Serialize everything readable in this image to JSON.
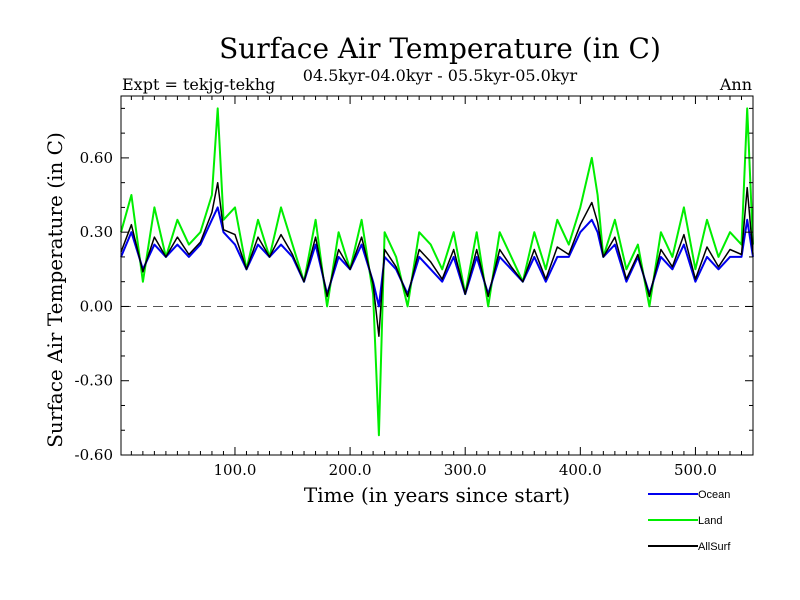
{
  "chart_data": {
    "type": "line",
    "title": "Surface Air Temperature (in C)",
    "subtitle": "04.5kyr-04.0kyr - 05.5kyr-05.0kyr",
    "left_label": "Expt = tekjg-tekhg",
    "right_label": "Ann",
    "xlabel": "Time (in years since start)",
    "ylabel": "Surface Air Temperature (in C)",
    "xlim": [
      1,
      550
    ],
    "ylim": [
      -0.6,
      0.85
    ],
    "x_ticks": [
      100,
      200,
      300,
      400,
      500
    ],
    "x_tick_labels": [
      "100.0",
      "200.0",
      "300.0",
      "400.0",
      "500.0"
    ],
    "y_ticks": [
      -0.6,
      -0.3,
      0.0,
      0.3,
      0.6
    ],
    "y_tick_labels": [
      "-0.60",
      "-0.30",
      "0.00",
      "0.30",
      "0.60"
    ],
    "zero_line": true,
    "series": [
      {
        "name": "Land",
        "color": "#00ee00",
        "x": [
          1,
          10,
          20,
          30,
          40,
          50,
          60,
          70,
          80,
          85,
          90,
          100,
          110,
          120,
          130,
          140,
          150,
          160,
          170,
          180,
          190,
          200,
          210,
          220,
          225,
          230,
          240,
          250,
          260,
          270,
          280,
          290,
          300,
          310,
          320,
          330,
          340,
          350,
          360,
          370,
          380,
          390,
          400,
          410,
          415,
          420,
          430,
          440,
          450,
          460,
          470,
          480,
          490,
          500,
          510,
          520,
          530,
          540,
          545,
          550
        ],
        "values": [
          0.3,
          0.45,
          0.1,
          0.4,
          0.2,
          0.35,
          0.25,
          0.3,
          0.45,
          0.8,
          0.35,
          0.4,
          0.15,
          0.35,
          0.2,
          0.4,
          0.25,
          0.1,
          0.35,
          0.0,
          0.3,
          0.15,
          0.35,
          0.05,
          -0.52,
          0.3,
          0.2,
          0.0,
          0.3,
          0.25,
          0.15,
          0.3,
          0.05,
          0.3,
          0.0,
          0.3,
          0.2,
          0.1,
          0.3,
          0.15,
          0.35,
          0.25,
          0.4,
          0.6,
          0.45,
          0.2,
          0.35,
          0.15,
          0.25,
          0.0,
          0.3,
          0.2,
          0.4,
          0.15,
          0.35,
          0.2,
          0.3,
          0.25,
          0.8,
          0.25
        ]
      },
      {
        "name": "Ocean",
        "color": "#0000ee",
        "x": [
          1,
          10,
          20,
          30,
          40,
          50,
          60,
          70,
          80,
          85,
          90,
          100,
          110,
          120,
          130,
          140,
          150,
          160,
          170,
          180,
          190,
          200,
          210,
          220,
          225,
          230,
          240,
          250,
          260,
          270,
          280,
          290,
          300,
          310,
          320,
          330,
          340,
          350,
          360,
          370,
          380,
          390,
          400,
          410,
          415,
          420,
          430,
          440,
          450,
          460,
          470,
          480,
          490,
          500,
          510,
          520,
          530,
          540,
          545,
          550
        ],
        "values": [
          0.2,
          0.3,
          0.15,
          0.25,
          0.2,
          0.25,
          0.2,
          0.25,
          0.35,
          0.4,
          0.3,
          0.25,
          0.15,
          0.25,
          0.2,
          0.25,
          0.2,
          0.1,
          0.25,
          0.05,
          0.2,
          0.15,
          0.25,
          0.1,
          0.0,
          0.2,
          0.15,
          0.05,
          0.2,
          0.15,
          0.1,
          0.2,
          0.05,
          0.2,
          0.05,
          0.2,
          0.15,
          0.1,
          0.2,
          0.1,
          0.2,
          0.2,
          0.3,
          0.35,
          0.3,
          0.2,
          0.25,
          0.1,
          0.2,
          0.05,
          0.2,
          0.15,
          0.25,
          0.1,
          0.2,
          0.15,
          0.2,
          0.2,
          0.35,
          0.2
        ]
      },
      {
        "name": "AllSurf",
        "color": "#000000",
        "x": [
          1,
          10,
          20,
          30,
          40,
          50,
          60,
          70,
          80,
          85,
          90,
          100,
          110,
          120,
          130,
          140,
          150,
          160,
          170,
          180,
          190,
          200,
          210,
          220,
          225,
          230,
          240,
          250,
          260,
          270,
          280,
          290,
          300,
          310,
          320,
          330,
          340,
          350,
          360,
          370,
          380,
          390,
          400,
          410,
          415,
          420,
          430,
          440,
          450,
          460,
          470,
          480,
          490,
          500,
          510,
          520,
          530,
          540,
          545,
          550
        ],
        "values": [
          0.22,
          0.33,
          0.14,
          0.28,
          0.2,
          0.28,
          0.21,
          0.26,
          0.38,
          0.5,
          0.31,
          0.29,
          0.15,
          0.28,
          0.2,
          0.29,
          0.21,
          0.1,
          0.28,
          0.04,
          0.23,
          0.15,
          0.28,
          0.09,
          -0.12,
          0.23,
          0.16,
          0.04,
          0.23,
          0.18,
          0.11,
          0.23,
          0.05,
          0.23,
          0.04,
          0.23,
          0.16,
          0.1,
          0.23,
          0.11,
          0.24,
          0.21,
          0.33,
          0.42,
          0.34,
          0.2,
          0.28,
          0.11,
          0.21,
          0.04,
          0.23,
          0.16,
          0.29,
          0.11,
          0.24,
          0.16,
          0.23,
          0.21,
          0.48,
          0.21
        ]
      }
    ],
    "legend": [
      "Ocean",
      "Land",
      "AllSurf"
    ],
    "legend_position": "bottom-right"
  }
}
